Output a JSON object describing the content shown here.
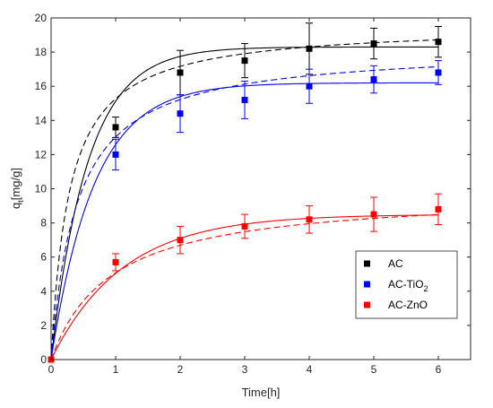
{
  "chart_data": {
    "type": "scatter",
    "xlabel": "Time[h]",
    "ylabel": {
      "main": "q",
      "sub": "t",
      "rest": "[mg/g]"
    },
    "xlim": [
      0,
      6.5
    ],
    "ylim": [
      0,
      20
    ],
    "xticks": [
      0,
      1,
      2,
      3,
      4,
      5,
      6
    ],
    "yticks": [
      0,
      2,
      4,
      6,
      8,
      10,
      12,
      14,
      16,
      18,
      20
    ],
    "grid": false,
    "legend_position": "lower-right",
    "series": [
      {
        "name": "AC",
        "name_main": "AC",
        "name_sub": "",
        "color": "#000000",
        "x": [
          0,
          1,
          2,
          3,
          4,
          5,
          6
        ],
        "y": [
          0,
          13.6,
          16.8,
          17.5,
          18.2,
          18.5,
          18.6
        ],
        "err": [
          0,
          0.6,
          1.3,
          1.0,
          1.5,
          0.9,
          0.9
        ],
        "solid_fit": {
          "qe": 18.3,
          "k": 1.75,
          "model": "pseudo-first-order"
        },
        "dashed_fit": {
          "qe": 19.6,
          "k": 0.18,
          "model": "pseudo-second-order"
        }
      },
      {
        "name": "AC-TiO2",
        "name_main": "AC-TiO",
        "name_sub": "2",
        "color": "#0000ff",
        "x": [
          0,
          1,
          2,
          3,
          4,
          5,
          6
        ],
        "y": [
          0,
          12.0,
          14.4,
          15.2,
          16.0,
          16.4,
          16.8
        ],
        "err": [
          0,
          0.9,
          1.1,
          1.1,
          1.0,
          0.8,
          0.7
        ],
        "solid_fit": {
          "qe": 16.2,
          "k": 1.5,
          "model": "pseudo-first-order"
        },
        "dashed_fit": {
          "qe": 18.3,
          "k": 0.135,
          "model": "pseudo-second-order"
        }
      },
      {
        "name": "AC-ZnO",
        "name_main": "AC-ZnO",
        "name_sub": "",
        "color": "#ff0000",
        "x": [
          0,
          1,
          2,
          3,
          4,
          5,
          6
        ],
        "y": [
          0,
          5.7,
          7.0,
          7.8,
          8.2,
          8.5,
          8.8
        ],
        "err": [
          0,
          0.5,
          0.8,
          0.7,
          0.8,
          1.0,
          0.9
        ],
        "solid_fit": {
          "qe": 8.5,
          "k": 0.9,
          "model": "pseudo-first-order"
        },
        "dashed_fit": {
          "qe": 9.8,
          "k": 0.11,
          "model": "pseudo-second-order"
        }
      }
    ]
  }
}
